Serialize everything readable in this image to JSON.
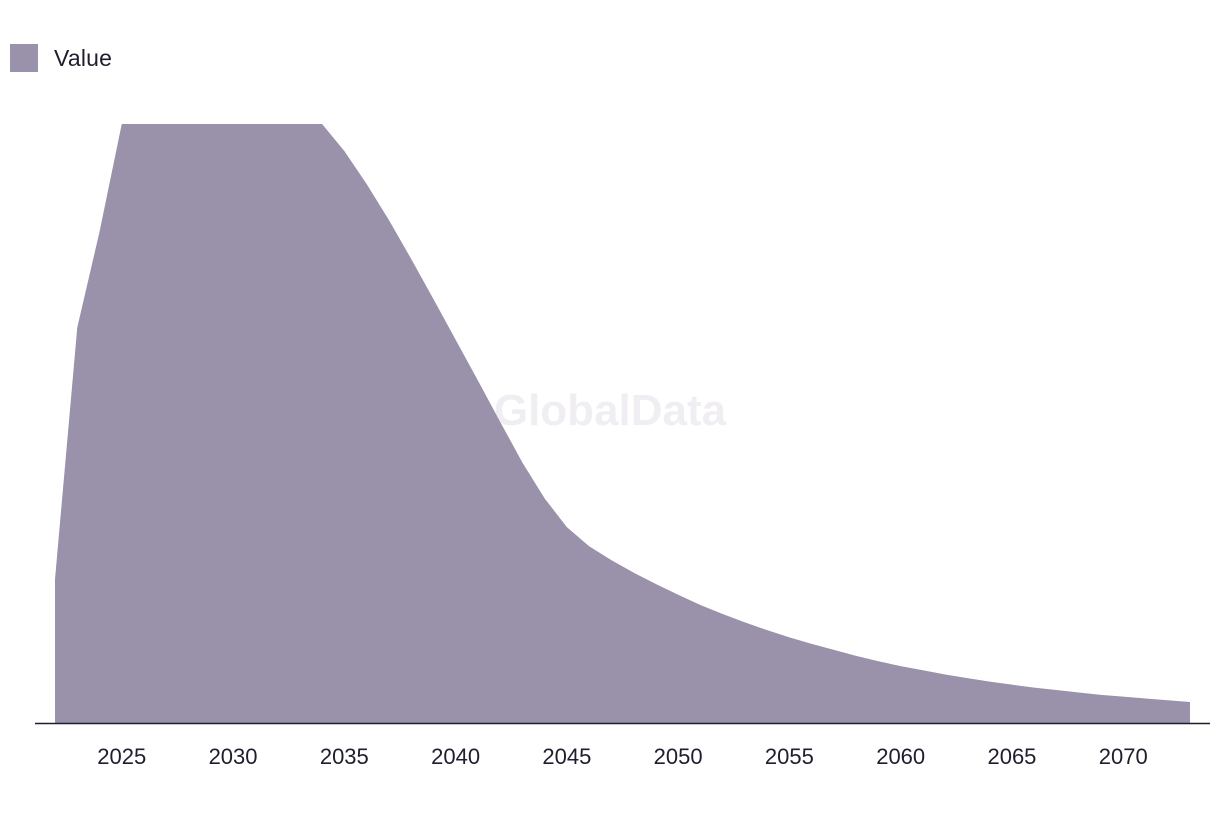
{
  "colors": {
    "area_fill": "#9a91aa",
    "axis_line": "#1e1e2e",
    "tick_text": "#1e1e2e",
    "watermark": "#f0eef3"
  },
  "watermark": "GlobalData",
  "chart_data": {
    "type": "area",
    "legend_position": "top-left",
    "grid": false,
    "xlim": [
      2022,
      2073
    ],
    "ylim": [
      0,
      100
    ],
    "x_ticks": [
      "2025",
      "2030",
      "2035",
      "2040",
      "2045",
      "2050",
      "2055",
      "2060",
      "2065",
      "2070"
    ],
    "series": [
      {
        "name": "Value",
        "color": "#9a91aa",
        "x": [
          2022,
          2023,
          2024,
          2025,
          2026,
          2027,
          2028,
          2029,
          2030,
          2031,
          2032,
          2033,
          2034,
          2035,
          2036,
          2037,
          2038,
          2039,
          2040,
          2041,
          2042,
          2043,
          2044,
          2045,
          2046,
          2047,
          2048,
          2049,
          2050,
          2051,
          2052,
          2053,
          2054,
          2055,
          2056,
          2057,
          2058,
          2059,
          2060,
          2061,
          2062,
          2063,
          2064,
          2065,
          2066,
          2067,
          2068,
          2069,
          2070,
          2071,
          2072,
          2073
        ],
        "values": [
          24,
          66,
          82,
          100,
          100,
          100,
          100,
          100,
          100,
          100,
          100,
          100,
          100,
          95.5,
          90,
          84,
          77.5,
          70.8,
          64,
          57.2,
          50.3,
          43.5,
          37.5,
          32.7,
          29.5,
          27.2,
          25.1,
          23.2,
          21.4,
          19.7,
          18.2,
          16.8,
          15.5,
          14.3,
          13.2,
          12.2,
          11.2,
          10.3,
          9.5,
          8.8,
          8.1,
          7.5,
          6.9,
          6.4,
          5.9,
          5.5,
          5.1,
          4.7,
          4.4,
          4.1,
          3.8,
          3.5
        ]
      }
    ]
  }
}
